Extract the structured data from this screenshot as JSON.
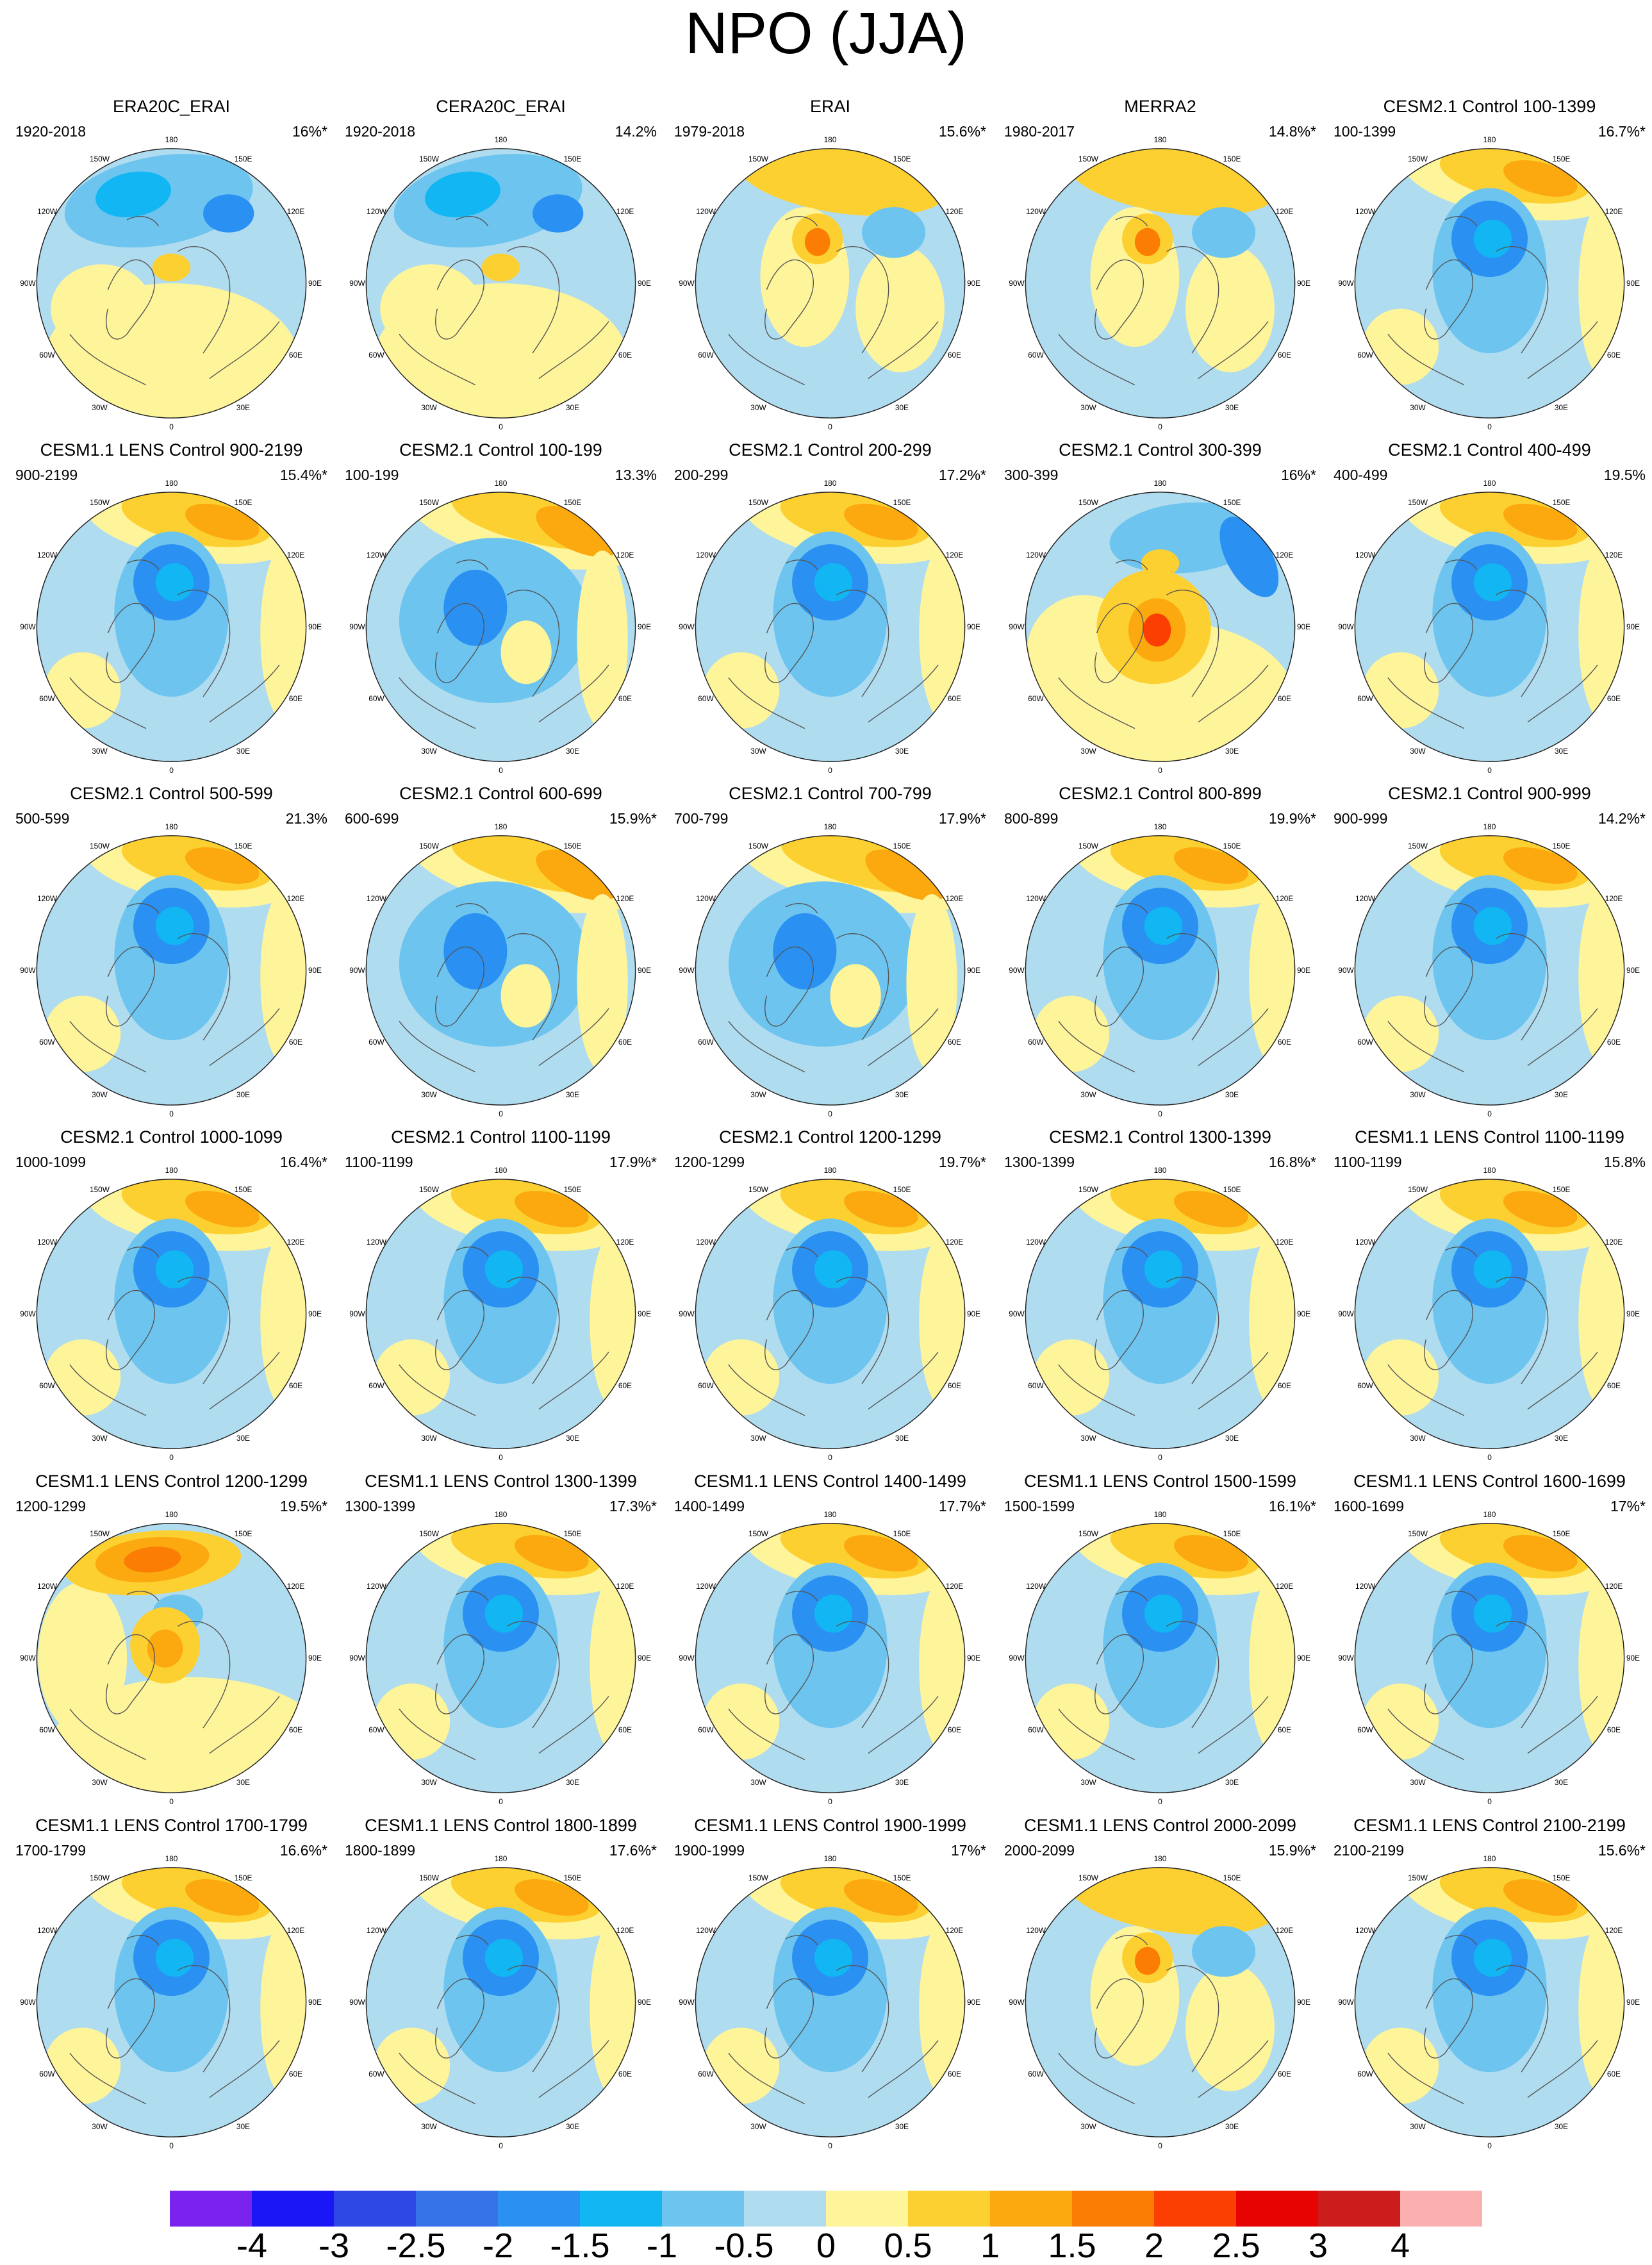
{
  "title": "NPO (JJA)",
  "lon_labels": [
    "180",
    "150E",
    "120E",
    "90E",
    "60E",
    "30E",
    "0",
    "30W",
    "60W",
    "90W",
    "120W",
    "150W"
  ],
  "panels": [
    {
      "title": "ERA20C_ERAI",
      "years": "1920-2018",
      "pct": "16%*",
      "pattern": "n1"
    },
    {
      "title": "CERA20C_ERAI",
      "years": "1920-2018",
      "pct": "14.2%",
      "pattern": "n1"
    },
    {
      "title": "ERAI",
      "years": "1979-2018",
      "pct": "15.6%*",
      "pattern": "p1"
    },
    {
      "title": "MERRA2",
      "years": "1980-2017",
      "pct": "14.8%*",
      "pattern": "p1"
    },
    {
      "title": "CESM2.1 Control 100-1399",
      "years": "100-1399",
      "pct": "16.7%*",
      "pattern": "c"
    },
    {
      "title": "CESM1.1 LENS Control 900-2199",
      "years": "900-2199",
      "pct": "15.4%*",
      "pattern": "c"
    },
    {
      "title": "CESM2.1 Control 100-199",
      "years": "100-199",
      "pct": "13.3%",
      "pattern": "c2"
    },
    {
      "title": "CESM2.1 Control 200-299",
      "years": "200-299",
      "pct": "17.2%*",
      "pattern": "c"
    },
    {
      "title": "CESM2.1 Control 300-399",
      "years": "300-399",
      "pct": "16%*",
      "pattern": "r"
    },
    {
      "title": "CESM2.1 Control 400-499",
      "years": "400-499",
      "pct": "19.5%",
      "pattern": "c"
    },
    {
      "title": "CESM2.1 Control 500-599",
      "years": "500-599",
      "pct": "21.3%",
      "pattern": "c"
    },
    {
      "title": "CESM2.1 Control 600-699",
      "years": "600-699",
      "pct": "15.9%*",
      "pattern": "c2"
    },
    {
      "title": "CESM2.1 Control 700-799",
      "years": "700-799",
      "pct": "17.9%*",
      "pattern": "c2"
    },
    {
      "title": "CESM2.1 Control 800-899",
      "years": "800-899",
      "pct": "19.9%*",
      "pattern": "c"
    },
    {
      "title": "CESM2.1 Control 900-999",
      "years": "900-999",
      "pct": "14.2%*",
      "pattern": "c"
    },
    {
      "title": "CESM2.1 Control 1000-1099",
      "years": "1000-1099",
      "pct": "16.4%*",
      "pattern": "c"
    },
    {
      "title": "CESM2.1 Control 1100-1199",
      "years": "1100-1199",
      "pct": "17.9%*",
      "pattern": "c"
    },
    {
      "title": "CESM2.1 Control 1200-1299",
      "years": "1200-1299",
      "pct": "19.7%*",
      "pattern": "c"
    },
    {
      "title": "CESM2.1 Control 1300-1399",
      "years": "1300-1399",
      "pct": "16.8%*",
      "pattern": "c"
    },
    {
      "title": "CESM1.1 LENS Control 1100-1199",
      "years": "1100-1199",
      "pct": "15.8%",
      "pattern": "c"
    },
    {
      "title": "CESM1.1 LENS Control 1200-1299",
      "years": "1200-1299",
      "pct": "19.5%*",
      "pattern": "p2"
    },
    {
      "title": "CESM1.1 LENS Control 1300-1399",
      "years": "1300-1399",
      "pct": "17.3%*",
      "pattern": "c"
    },
    {
      "title": "CESM1.1 LENS Control 1400-1499",
      "years": "1400-1499",
      "pct": "17.7%*",
      "pattern": "c"
    },
    {
      "title": "CESM1.1 LENS Control 1500-1599",
      "years": "1500-1599",
      "pct": "16.1%*",
      "pattern": "c"
    },
    {
      "title": "CESM1.1 LENS Control 1600-1699",
      "years": "1600-1699",
      "pct": "17%*",
      "pattern": "c"
    },
    {
      "title": "CESM1.1 LENS Control 1700-1799",
      "years": "1700-1799",
      "pct": "16.6%*",
      "pattern": "c"
    },
    {
      "title": "CESM1.1 LENS Control 1800-1899",
      "years": "1800-1899",
      "pct": "17.6%*",
      "pattern": "c"
    },
    {
      "title": "CESM1.1 LENS Control 1900-1999",
      "years": "1900-1999",
      "pct": "17%*",
      "pattern": "c"
    },
    {
      "title": "CESM1.1 LENS Control 2000-2099",
      "years": "2000-2099",
      "pct": "15.9%*",
      "pattern": "p1"
    },
    {
      "title": "CESM1.1 LENS Control 2100-2199",
      "years": "2100-2199",
      "pct": "15.6%*",
      "pattern": "c"
    }
  ],
  "colorbar": {
    "colors": [
      "#7a22ee",
      "#1a16f5",
      "#2e48e6",
      "#3773e8",
      "#2a90f2",
      "#11b6f3",
      "#6cc4ef",
      "#b0dcf0",
      "#fef49a",
      "#fdd031",
      "#fba90f",
      "#fb7d04",
      "#fb3f02",
      "#e80303",
      "#cd1c1c",
      "#fbb0b0"
    ],
    "ticks": [
      "-4",
      "-3",
      "-2.5",
      "-2",
      "-1.5",
      "-1",
      "-0.5",
      "0",
      "0.5",
      "1",
      "1.5",
      "2",
      "2.5",
      "3",
      "4"
    ]
  }
}
